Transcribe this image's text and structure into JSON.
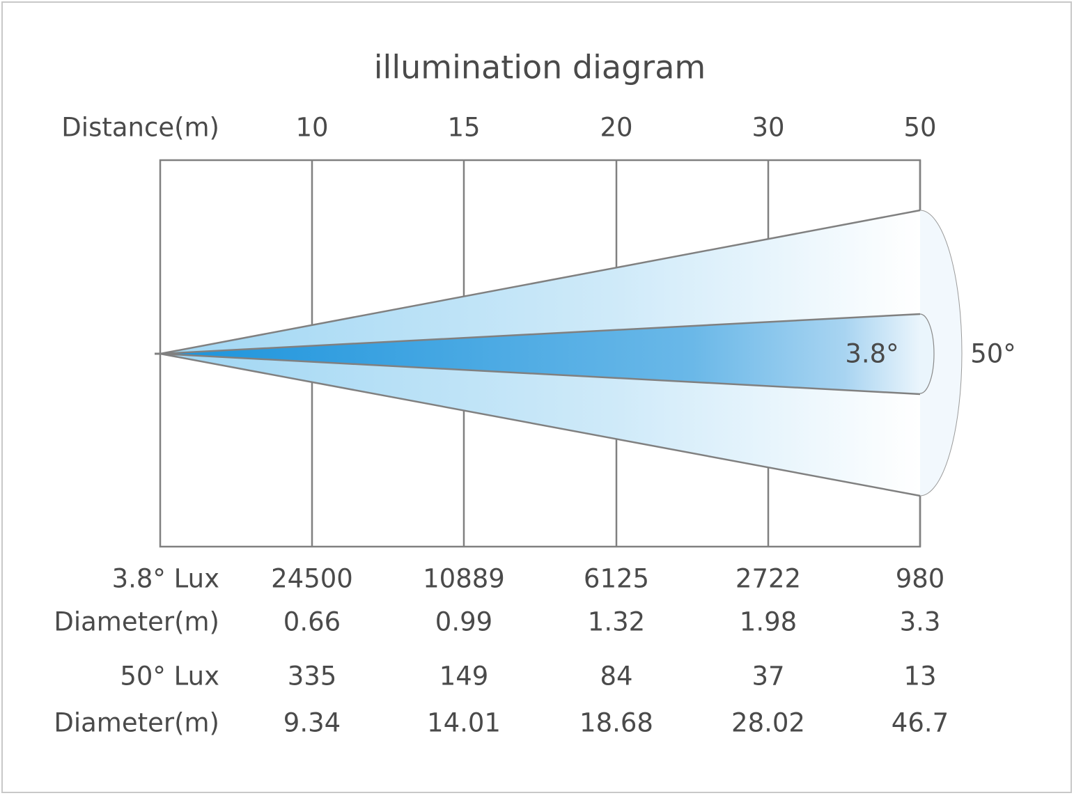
{
  "title": "illumination diagram",
  "header": {
    "label": "Distance(m)",
    "distances": [
      10,
      15,
      20,
      30,
      50
    ]
  },
  "beams": {
    "narrow": "3.8°",
    "wide": "50°"
  },
  "rows": [
    {
      "label": "3.8° Lux",
      "values": [
        24500,
        10889,
        6125,
        2722,
        980
      ]
    },
    {
      "label": "Diameter(m)",
      "values": [
        0.66,
        0.99,
        1.32,
        1.98,
        3.3
      ]
    },
    {
      "label": "50° Lux",
      "values": [
        335,
        149,
        84,
        37,
        13
      ]
    },
    {
      "label": "Diameter(m)",
      "values": [
        9.34,
        14.01,
        18.68,
        28.02,
        46.7
      ]
    }
  ]
}
